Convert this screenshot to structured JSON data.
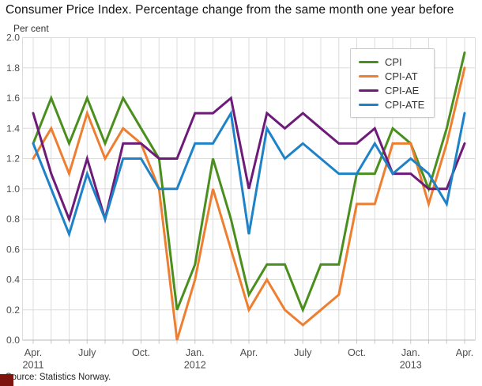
{
  "title": "Consumer Price Index. Percentage change from the same month one year before",
  "unit_label": "Per cent",
  "source": "Source: Statistics Norway.",
  "colors": {
    "cpi_green": "#4a8f1e",
    "cpi_at_orange": "#ee7e30",
    "cpi_ae_purple": "#6e1a78",
    "cpi_ate_blue": "#1e82c8",
    "gridline": "#dcdcdc",
    "axis_line": "#b8b8b8",
    "tick_text": "#4d4d4d",
    "brand_red": "#7d150e"
  },
  "chart_data": {
    "type": "line",
    "title": "Consumer Price Index. Percentage change from the same month one year before",
    "ylabel": "Per cent",
    "ylim": [
      0.0,
      2.0
    ],
    "ytick_step": 0.2,
    "grid": true,
    "legend_position": "top-right",
    "x": [
      "2011-04",
      "2011-05",
      "2011-06",
      "2011-07",
      "2011-08",
      "2011-09",
      "2011-10",
      "2011-11",
      "2011-12",
      "2012-01",
      "2012-02",
      "2012-03",
      "2012-04",
      "2012-05",
      "2012-06",
      "2012-07",
      "2012-08",
      "2012-09",
      "2012-10",
      "2012-11",
      "2012-12",
      "2013-01",
      "2013-02",
      "2013-03",
      "2013-04"
    ],
    "xticks": [
      {
        "index": 0,
        "lines": [
          "Apr.",
          "2011"
        ]
      },
      {
        "index": 3,
        "lines": [
          "July"
        ]
      },
      {
        "index": 6,
        "lines": [
          "Oct."
        ]
      },
      {
        "index": 9,
        "lines": [
          "Jan.",
          "2012"
        ]
      },
      {
        "index": 12,
        "lines": [
          "Apr."
        ]
      },
      {
        "index": 15,
        "lines": [
          "July"
        ]
      },
      {
        "index": 18,
        "lines": [
          "Oct."
        ]
      },
      {
        "index": 21,
        "lines": [
          "Jan.",
          "2013"
        ]
      },
      {
        "index": 24,
        "lines": [
          "Apr."
        ]
      }
    ],
    "series": [
      {
        "name": "CPI",
        "color": "#4a8f1e",
        "values": [
          1.3,
          1.6,
          1.3,
          1.6,
          1.3,
          1.6,
          1.4,
          1.2,
          0.2,
          0.5,
          1.2,
          0.8,
          0.3,
          0.5,
          0.5,
          0.2,
          0.5,
          0.5,
          1.1,
          1.1,
          1.4,
          1.3,
          1.0,
          1.4,
          1.9
        ]
      },
      {
        "name": "CPI-AT",
        "color": "#ee7e30",
        "values": [
          1.2,
          1.4,
          1.1,
          1.5,
          1.2,
          1.4,
          1.3,
          1.0,
          0.0,
          0.4,
          1.0,
          0.6,
          0.2,
          0.4,
          0.2,
          0.1,
          0.2,
          0.3,
          0.9,
          0.9,
          1.3,
          1.3,
          0.9,
          1.3,
          1.8
        ]
      },
      {
        "name": "CPI-AE",
        "color": "#6e1a78",
        "values": [
          1.5,
          1.1,
          0.8,
          1.2,
          0.8,
          1.3,
          1.3,
          1.2,
          1.2,
          1.5,
          1.5,
          1.6,
          1.0,
          1.5,
          1.4,
          1.5,
          1.4,
          1.3,
          1.3,
          1.4,
          1.1,
          1.1,
          1.0,
          1.0,
          1.3
        ]
      },
      {
        "name": "CPI-ATE",
        "color": "#1e82c8",
        "values": [
          1.3,
          1.0,
          0.7,
          1.1,
          0.8,
          1.2,
          1.2,
          1.0,
          1.0,
          1.3,
          1.3,
          1.5,
          0.7,
          1.4,
          1.2,
          1.3,
          1.2,
          1.1,
          1.1,
          1.3,
          1.1,
          1.2,
          1.1,
          0.9,
          1.5
        ]
      }
    ],
    "source": "Source: Statistics Norway."
  }
}
